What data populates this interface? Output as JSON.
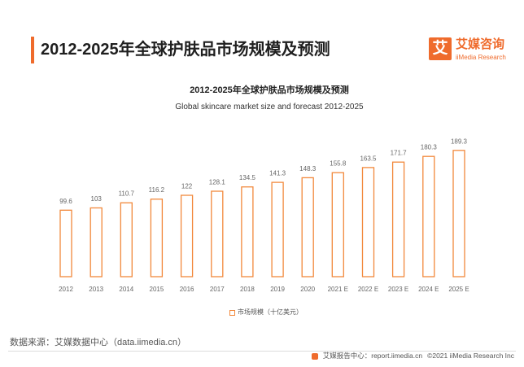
{
  "theme": {
    "accent": "#EF6B2C"
  },
  "header": {
    "title": "2012-2025年全球护肤品市场规模及预测"
  },
  "logo": {
    "mark": "艾",
    "name_cn": "艾媒咨询",
    "name_en": "iiMedia Research"
  },
  "chart_data": {
    "type": "bar",
    "title": "2012-2025年全球护肤品市场规模及预测",
    "subtitle": "Global skincare market size and forecast 2012-2025",
    "categories": [
      "2012",
      "2013",
      "2014",
      "2015",
      "2016",
      "2017",
      "2018",
      "2019",
      "2020",
      "2021 E",
      "2022 E",
      "2023 E",
      "2024 E",
      "2025 E"
    ],
    "series": [
      {
        "name": "市场规模（十亿美元）",
        "color": "#F2883B",
        "values": [
          99.6,
          103,
          110.7,
          116.2,
          122,
          128.1,
          134.5,
          141.3,
          148.3,
          155.8,
          163.5,
          171.7,
          180.3,
          189.3
        ]
      }
    ]
  },
  "footer": {
    "source": "数据来源：艾媒数据中心（data.iimedia.cn）",
    "report_center": "艾媒报告中心：report.iimedia.cn",
    "copyright": "©2021 iiMedia Research Inc"
  }
}
